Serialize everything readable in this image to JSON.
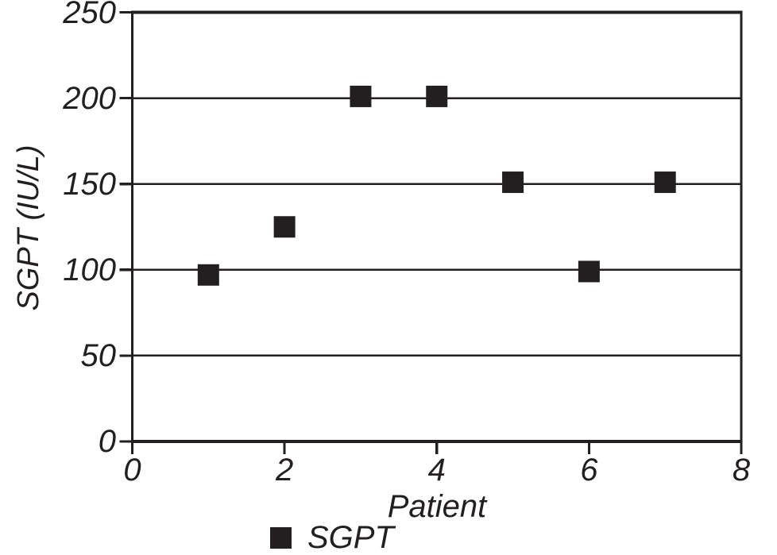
{
  "chart_data": {
    "type": "scatter",
    "title": "",
    "xlabel": "Patient",
    "ylabel": "SGPT (IU/L)",
    "xlim": [
      0,
      8
    ],
    "ylim": [
      0,
      250
    ],
    "xticks": [
      0,
      2,
      4,
      6,
      8
    ],
    "yticks": [
      0,
      50,
      100,
      150,
      200,
      250
    ],
    "grid": "horizontal",
    "legend_position": "bottom",
    "series": [
      {
        "name": "SGPT",
        "marker": "square",
        "marker_color": "#231f20",
        "x": [
          1,
          2,
          3,
          4,
          5,
          6,
          7
        ],
        "y": [
          97,
          125,
          201,
          201,
          151,
          99,
          151
        ]
      }
    ]
  },
  "colors": {
    "ink": "#231f20",
    "background": "#ffffff"
  }
}
